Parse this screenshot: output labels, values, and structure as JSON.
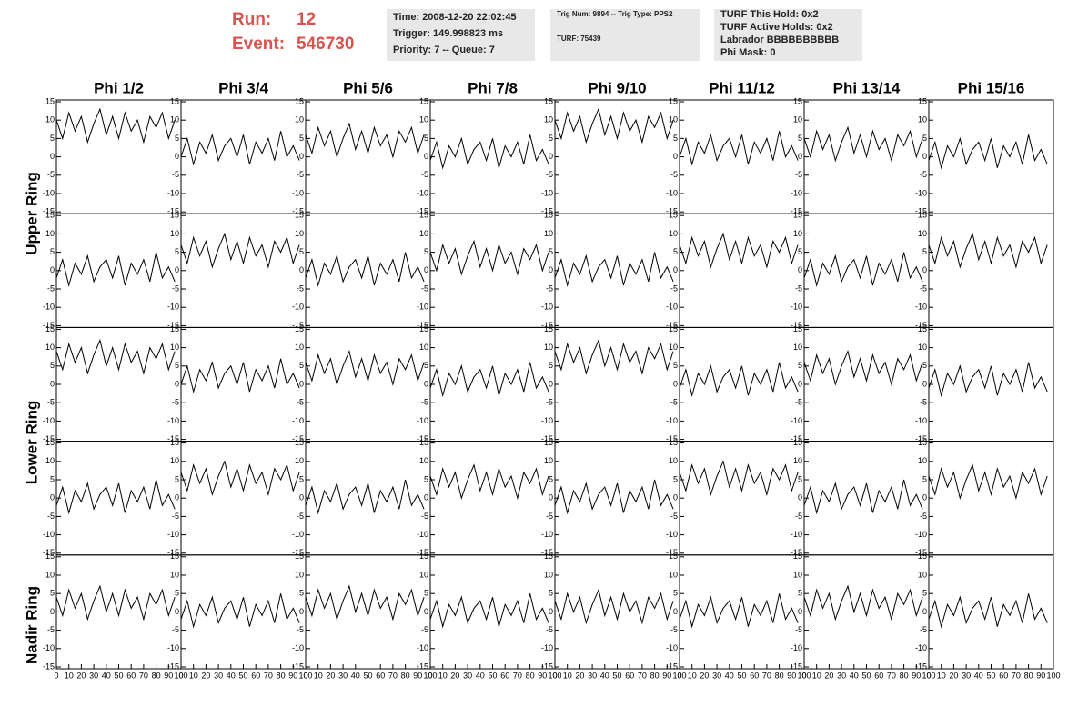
{
  "header": {
    "run_label": "Run:",
    "run": "12",
    "event_label": "Event:",
    "event": "546730",
    "box1": [
      "Time: 2008-12-20 22:02:45",
      "Trigger: 149.998823 ms",
      "Priority: 7 -- Queue: 7"
    ],
    "box2": [
      "Trig Num: 9894 -- Trig Type: PPS2",
      "TURF: 75439"
    ],
    "box3": [
      "TURF This Hold: 0x2",
      "TURF Active Holds: 0x2",
      "Labrador BBBBBBBBBB",
      "Phi Mask: 0"
    ]
  },
  "chart_data": {
    "type": "waveform_grid",
    "color": "#000000",
    "columns": [
      "Phi 1/2",
      "Phi 3/4",
      "Phi 5/6",
      "Phi 7/8",
      "Phi 9/10",
      "Phi 11/12",
      "Phi 13/14",
      "Phi 15/16"
    ],
    "ring_labels": [
      "Upper Ring",
      "Lower Ring",
      "Nadir Ring"
    ],
    "xlim": [
      0,
      100
    ],
    "xticks": [
      0,
      10,
      20,
      30,
      40,
      50,
      60,
      70,
      80,
      90,
      100
    ],
    "ylim": [
      -15,
      15
    ],
    "yticks": [
      -15,
      -10,
      -5,
      0,
      5,
      10,
      15
    ],
    "x": [
      0,
      5,
      10,
      15,
      20,
      25,
      30,
      35,
      40,
      45,
      50,
      55,
      60,
      65,
      70,
      75,
      80,
      85,
      90,
      95
    ],
    "panels": [
      [
        [
          10,
          5,
          12,
          7,
          11,
          4,
          9,
          13,
          6,
          11,
          5,
          12,
          7,
          10,
          4,
          11,
          8,
          12,
          5,
          10
        ],
        [
          0,
          5,
          -2,
          4,
          1,
          6,
          -1,
          3,
          5,
          0,
          6,
          -2,
          4,
          1,
          5,
          -1,
          7,
          0,
          3,
          -1
        ],
        [
          6,
          1,
          8,
          3,
          7,
          0,
          5,
          9,
          2,
          7,
          1,
          8,
          3,
          6,
          0,
          7,
          4,
          8,
          1,
          6
        ],
        [
          -1,
          4,
          -3,
          3,
          0,
          5,
          -2,
          2,
          4,
          -1,
          5,
          -3,
          3,
          0,
          4,
          -2,
          6,
          -1,
          2,
          -2
        ],
        [
          10,
          5,
          12,
          7,
          11,
          4,
          9,
          13,
          6,
          11,
          5,
          12,
          7,
          10,
          4,
          11,
          8,
          12,
          5,
          10
        ],
        [
          0,
          5,
          -2,
          4,
          1,
          6,
          -1,
          3,
          5,
          0,
          6,
          -2,
          4,
          1,
          5,
          -1,
          7,
          0,
          3,
          -1
        ],
        [
          5,
          0,
          7,
          2,
          6,
          -1,
          4,
          8,
          1,
          6,
          0,
          7,
          2,
          5,
          -1,
          6,
          3,
          7,
          0,
          5
        ],
        [
          -1,
          4,
          -3,
          3,
          0,
          5,
          -2,
          2,
          4,
          -1,
          5,
          -3,
          3,
          0,
          4,
          -2,
          6,
          -1,
          2,
          -2
        ]
      ],
      [
        [
          -2,
          3,
          -4,
          2,
          -1,
          4,
          -3,
          1,
          3,
          -2,
          4,
          -4,
          2,
          -1,
          3,
          -3,
          5,
          -2,
          1,
          -3
        ],
        [
          7,
          2,
          9,
          4,
          8,
          1,
          6,
          10,
          3,
          8,
          2,
          9,
          4,
          7,
          1,
          8,
          5,
          9,
          2,
          7
        ],
        [
          -2,
          3,
          -4,
          2,
          -1,
          4,
          -3,
          1,
          3,
          -2,
          4,
          -4,
          2,
          -1,
          3,
          -3,
          5,
          -2,
          1,
          -3
        ],
        [
          5,
          0,
          7,
          2,
          6,
          -1,
          4,
          8,
          1,
          6,
          0,
          7,
          2,
          5,
          -1,
          6,
          3,
          7,
          0,
          5
        ],
        [
          -2,
          3,
          -4,
          2,
          -1,
          4,
          -3,
          1,
          3,
          -2,
          4,
          -4,
          2,
          -1,
          3,
          -3,
          5,
          -2,
          1,
          -3
        ],
        [
          7,
          2,
          9,
          4,
          8,
          1,
          6,
          10,
          3,
          8,
          2,
          9,
          4,
          7,
          1,
          8,
          5,
          9,
          2,
          7
        ],
        [
          -2,
          3,
          -4,
          2,
          -1,
          4,
          -3,
          1,
          3,
          -2,
          4,
          -4,
          2,
          -1,
          3,
          -3,
          5,
          -2,
          1,
          -3
        ],
        [
          7,
          2,
          9,
          4,
          8,
          1,
          6,
          10,
          3,
          8,
          2,
          9,
          4,
          7,
          1,
          8,
          5,
          9,
          2,
          7
        ]
      ],
      [
        [
          9,
          4,
          11,
          6,
          10,
          3,
          8,
          12,
          5,
          10,
          4,
          11,
          6,
          9,
          3,
          10,
          7,
          11,
          4,
          9
        ],
        [
          0,
          5,
          -2,
          4,
          1,
          6,
          -1,
          3,
          5,
          0,
          6,
          -2,
          4,
          1,
          5,
          -1,
          7,
          0,
          3,
          -1
        ],
        [
          6,
          1,
          8,
          3,
          7,
          0,
          5,
          9,
          2,
          7,
          1,
          8,
          3,
          6,
          0,
          7,
          4,
          8,
          1,
          6
        ],
        [
          -1,
          4,
          -3,
          3,
          0,
          5,
          -2,
          2,
          4,
          -1,
          5,
          -3,
          3,
          0,
          4,
          -2,
          6,
          -1,
          2,
          -2
        ],
        [
          9,
          4,
          11,
          6,
          10,
          3,
          8,
          12,
          5,
          10,
          4,
          11,
          6,
          9,
          3,
          10,
          7,
          11,
          4,
          9
        ],
        [
          -1,
          4,
          -3,
          3,
          0,
          5,
          -2,
          2,
          4,
          -1,
          5,
          -3,
          3,
          0,
          4,
          -2,
          6,
          -1,
          2,
          -2
        ],
        [
          6,
          1,
          8,
          3,
          7,
          0,
          5,
          9,
          2,
          7,
          1,
          8,
          3,
          6,
          0,
          7,
          4,
          8,
          1,
          6
        ],
        [
          -1,
          4,
          -3,
          3,
          0,
          5,
          -2,
          2,
          4,
          -1,
          5,
          -3,
          3,
          0,
          4,
          -2,
          6,
          -1,
          2,
          -2
        ]
      ],
      [
        [
          -2,
          3,
          -4,
          2,
          -1,
          4,
          -3,
          1,
          3,
          -2,
          4,
          -4,
          2,
          -1,
          3,
          -3,
          5,
          -2,
          1,
          -3
        ],
        [
          7,
          2,
          9,
          4,
          8,
          1,
          6,
          10,
          3,
          8,
          2,
          9,
          4,
          7,
          1,
          8,
          5,
          9,
          2,
          7
        ],
        [
          -2,
          3,
          -4,
          2,
          -1,
          4,
          -3,
          1,
          3,
          -2,
          4,
          -4,
          2,
          -1,
          3,
          -3,
          5,
          -2,
          1,
          -3
        ],
        [
          6,
          1,
          8,
          3,
          7,
          0,
          5,
          9,
          2,
          7,
          1,
          8,
          3,
          6,
          0,
          7,
          4,
          8,
          1,
          6
        ],
        [
          -2,
          3,
          -4,
          2,
          -1,
          4,
          -3,
          1,
          3,
          -2,
          4,
          -4,
          2,
          -1,
          3,
          -3,
          5,
          -2,
          1,
          -3
        ],
        [
          7,
          2,
          9,
          4,
          8,
          1,
          6,
          10,
          3,
          8,
          2,
          9,
          4,
          7,
          1,
          8,
          5,
          9,
          2,
          7
        ],
        [
          -2,
          3,
          -4,
          2,
          -1,
          4,
          -3,
          1,
          3,
          -2,
          4,
          -4,
          2,
          -1,
          3,
          -3,
          5,
          -2,
          1,
          -3
        ],
        [
          6,
          1,
          8,
          3,
          7,
          0,
          5,
          9,
          2,
          7,
          1,
          8,
          3,
          6,
          0,
          7,
          4,
          8,
          1,
          6
        ]
      ],
      [
        [
          4,
          -1,
          6,
          1,
          5,
          -2,
          3,
          7,
          0,
          5,
          -1,
          6,
          1,
          4,
          -2,
          5,
          2,
          6,
          -1,
          4
        ],
        [
          -2,
          3,
          -4,
          2,
          -1,
          4,
          -3,
          1,
          3,
          -2,
          4,
          -4,
          2,
          -1,
          3,
          -3,
          5,
          -2,
          1,
          -3
        ],
        [
          4,
          -1,
          6,
          1,
          5,
          -2,
          3,
          7,
          0,
          5,
          -1,
          6,
          1,
          4,
          -2,
          5,
          2,
          6,
          -1,
          4
        ],
        [
          -2,
          3,
          -4,
          2,
          -1,
          4,
          -3,
          1,
          3,
          -2,
          4,
          -4,
          2,
          -1,
          3,
          -3,
          5,
          -2,
          1,
          -3
        ],
        [
          3,
          -2,
          5,
          0,
          4,
          -3,
          2,
          6,
          -1,
          4,
          -2,
          5,
          0,
          3,
          -3,
          4,
          1,
          5,
          -2,
          3
        ],
        [
          -2,
          3,
          -4,
          2,
          -1,
          4,
          -3,
          1,
          3,
          -2,
          4,
          -4,
          2,
          -1,
          3,
          -3,
          5,
          -2,
          1,
          -3
        ],
        [
          4,
          -1,
          6,
          1,
          5,
          -2,
          3,
          7,
          0,
          5,
          -1,
          6,
          1,
          4,
          -2,
          5,
          2,
          6,
          -1,
          4
        ],
        [
          -2,
          3,
          -4,
          2,
          -1,
          4,
          -3,
          1,
          3,
          -2,
          4,
          -4,
          2,
          -1,
          3,
          -3,
          5,
          -2,
          1,
          -3
        ]
      ]
    ]
  }
}
